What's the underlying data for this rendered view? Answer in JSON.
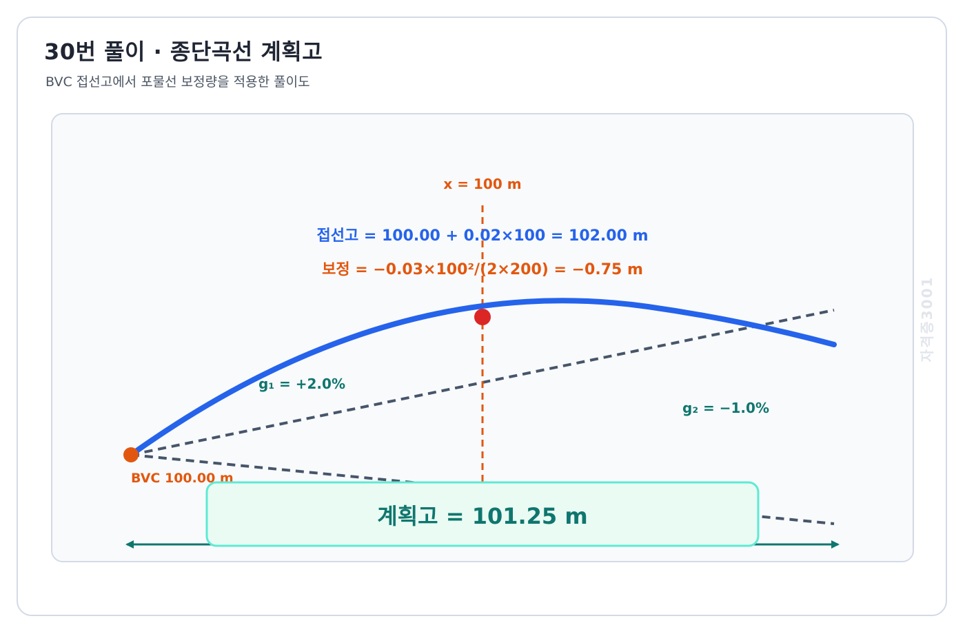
{
  "header": {
    "title": "30번 풀이 · 종단곡선 계획고",
    "subtitle": "BVC 접선고에서 포물선 보정량을 적용한 풀이도"
  },
  "diagram": {
    "x_label": "x = 100 m",
    "tangent_formula": "접선고 = 100.00 + 0.02×100 = 102.00 m",
    "correction_formula": "보정 = −0.03×100²/(2×200) = −0.75 m",
    "g1_label": "g₁ = +2.0%",
    "g2_label": "g₂ = −1.0%",
    "bvc_label": "BVC 100.00 m",
    "result_label": "계획고 = 101.25 m",
    "watermark": "자격증3001"
  },
  "colors": {
    "curve": "#2563eb",
    "tangent": "#475569",
    "station_line": "#e2570f",
    "point": "#dc2626",
    "bvc_point": "#e2570f",
    "result_fill": "#e9fbf3",
    "result_border": "#5eead4",
    "arrow": "#0f766e"
  }
}
